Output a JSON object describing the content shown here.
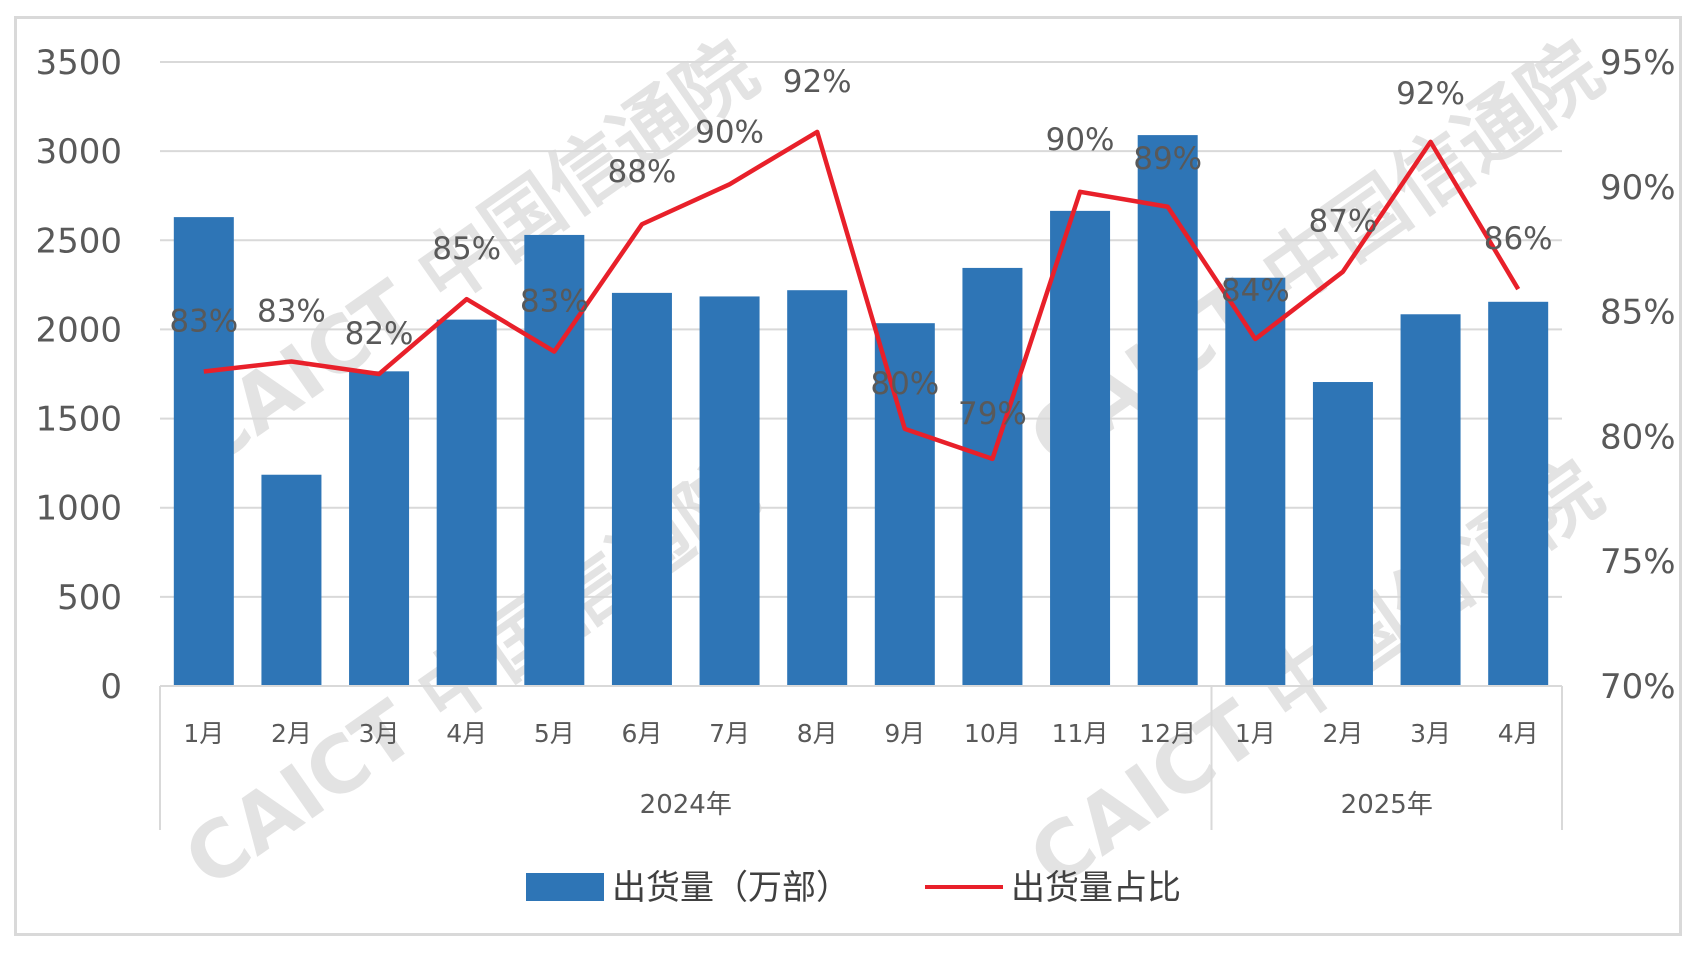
{
  "chart_data": {
    "type": "bar",
    "title": "",
    "categories": [
      "1月",
      "2月",
      "3月",
      "4月",
      "5月",
      "6月",
      "7月",
      "8月",
      "9月",
      "10月",
      "11月",
      "12月",
      "1月",
      "2月",
      "3月",
      "4月"
    ],
    "groups": [
      {
        "label": "2024年",
        "count": 12
      },
      {
        "label": "2025年",
        "count": 4
      }
    ],
    "series": [
      {
        "name": "出货量（万部）",
        "type": "bar",
        "axis": "left",
        "color": "#2e75b6",
        "values": [
          2630,
          1185,
          1765,
          2055,
          2530,
          2205,
          2185,
          2220,
          2035,
          2345,
          2665,
          3090,
          2290,
          1705,
          2085,
          2155
        ]
      },
      {
        "name": "出货量占比",
        "type": "line",
        "axis": "right",
        "color": "#e8202a",
        "values": [
          0.826,
          0.83,
          0.825,
          0.855,
          0.834,
          0.885,
          0.901,
          0.922,
          0.803,
          0.791,
          0.898,
          0.892,
          0.839,
          0.866,
          0.918,
          0.859
        ],
        "data_labels": [
          "83%",
          "83%",
          "82%",
          "85%",
          "83%",
          "88%",
          "90%",
          "92%",
          "80%",
          "79%",
          "90%",
          "89%",
          "84%",
          "87%",
          "92%",
          "86%"
        ]
      }
    ],
    "y_left": {
      "min": 0,
      "max": 3500,
      "ticks": [
        "0",
        "500",
        "1000",
        "1500",
        "2000",
        "2500",
        "3000",
        "3500"
      ]
    },
    "y_right": {
      "min": 0.7,
      "max": 0.95,
      "ticks": [
        "70%",
        "75%",
        "80%",
        "85%",
        "90%",
        "95%"
      ]
    },
    "grid": true,
    "legend_position": "bottom",
    "legend": [
      "出货量（万部）",
      "出货量占比"
    ],
    "watermark": "CAICT 中国信通院"
  }
}
